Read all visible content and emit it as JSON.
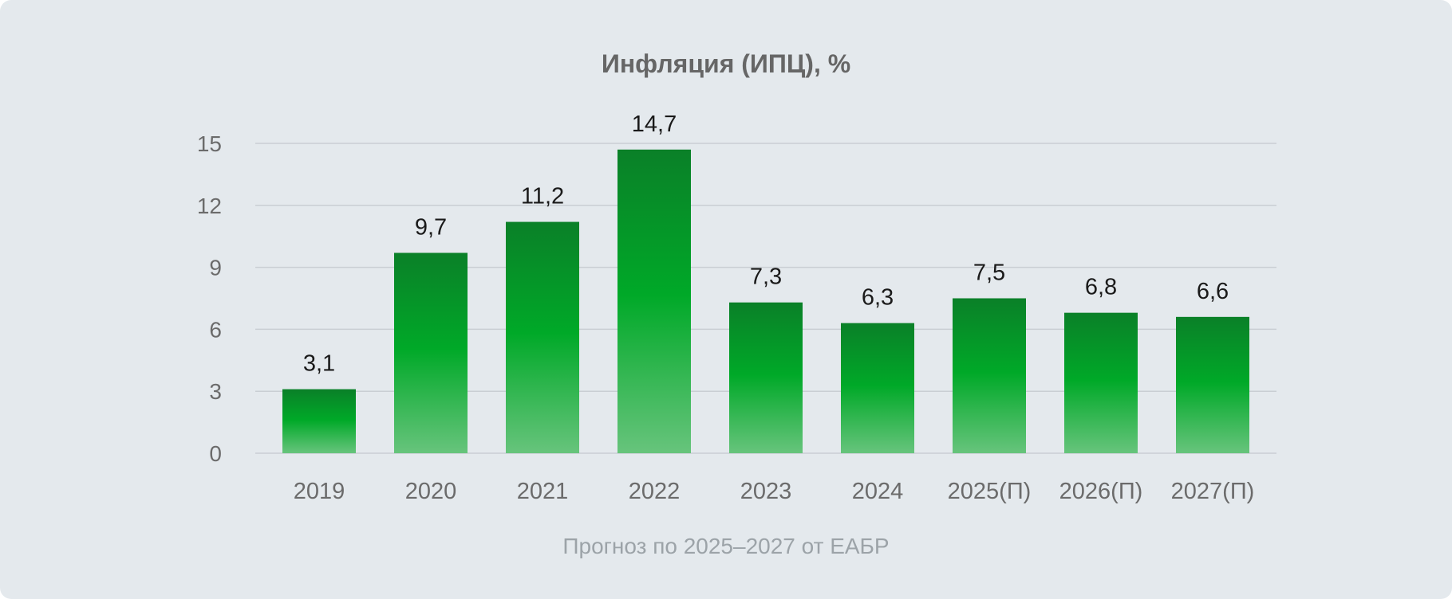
{
  "chart_data": {
    "type": "bar",
    "title": "Инфляция (ИПЦ), %",
    "note": "Прогноз по 2025–2027 от ЕАБР",
    "categories": [
      "2019",
      "2020",
      "2021",
      "2022",
      "2023",
      "2024",
      "2025(П)",
      "2026(П)",
      "2027(П)"
    ],
    "values": [
      3.1,
      9.7,
      11.2,
      14.7,
      7.3,
      6.3,
      7.5,
      6.8,
      6.6
    ],
    "value_labels": [
      "3,1",
      "9,7",
      "11,2",
      "14,7",
      "7,3",
      "6,3",
      "7,5",
      "6,8",
      "6,6"
    ],
    "yticks": [
      0,
      3,
      6,
      9,
      12,
      15
    ],
    "ylim": [
      0,
      15
    ],
    "grid": true,
    "colors": {
      "bar_top": "#0a8028",
      "bar_mid": "#00a928",
      "bar_bottom": "#67c47c",
      "grid": "#c9ced3"
    }
  }
}
